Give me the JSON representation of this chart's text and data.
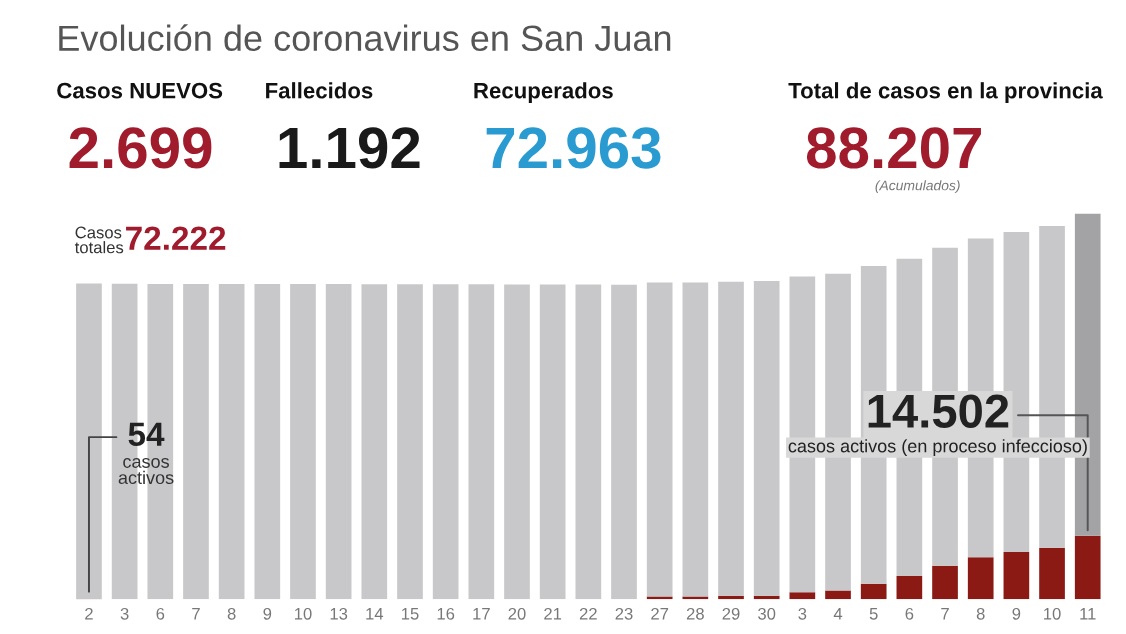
{
  "chart_data": {
    "type": "bar",
    "stacked": true,
    "title": "Evolución de coronavirus en San Juan",
    "categories": [
      "2",
      "3",
      "6",
      "7",
      "8",
      "9",
      "10",
      "13",
      "14",
      "15",
      "16",
      "17",
      "20",
      "21",
      "22",
      "23",
      "27",
      "28",
      "29",
      "30",
      "3",
      "4",
      "5",
      "6",
      "7",
      "8",
      "9",
      "10",
      "11"
    ],
    "series": [
      {
        "color": "#8b1a14",
        "values": [
          54,
          null,
          null,
          null,
          null,
          null,
          null,
          null,
          null,
          null,
          null,
          null,
          null,
          null,
          null,
          null,
          590,
          590,
          780,
          780,
          1570,
          1960,
          3530,
          5290,
          7640,
          9600,
          10780,
          11760,
          14502
        ],
        "value_labels": [
          "54",
          null,
          null,
          null,
          null,
          null,
          null,
          null,
          null,
          null,
          null,
          null,
          null,
          null,
          null,
          null,
          null,
          null,
          null,
          null,
          null,
          null,
          null,
          null,
          null,
          null,
          null,
          null,
          "14.502"
        ]
      },
      {
        "colors": [
          "#c8c8ca",
          "#c8c8ca",
          "#c8c8ca",
          "#c8c8ca",
          "#c8c8ca",
          "#c8c8ca",
          "#c8c8ca",
          "#c8c8ca",
          "#c8c8ca",
          "#c8c8ca",
          "#c8c8ca",
          "#c8c8ca",
          "#c8c8ca",
          "#c8c8ca",
          "#c8c8ca",
          "#c8c8ca",
          "#c8c8ca",
          "#c8c8ca",
          "#c8c8ca",
          "#c8c8ca",
          "#c8c8ca",
          "#c8c8ca",
          "#c8c8ca",
          "#c8c8ca",
          "#c8c8ca",
          "#c8c8ca",
          "#c8c8ca",
          "#c8c8ca",
          "#a3a3a5"
        ],
        "values": [
          72168,
          72162,
          72152,
          72142,
          72132,
          72122,
          72112,
          72102,
          72092,
          72082,
          72072,
          72062,
          72042,
          72022,
          72002,
          71972,
          71910,
          71910,
          71880,
          72020,
          72280,
          72490,
          72720,
          72610,
          72800,
          72940,
          73260,
          73630,
          73705
        ]
      }
    ],
    "totals": [
      "72.222",
      null,
      null,
      null,
      null,
      null,
      null,
      null,
      null,
      null,
      null,
      null,
      null,
      null,
      null,
      null,
      null,
      null,
      null,
      null,
      null,
      null,
      null,
      null,
      null,
      null,
      null,
      null,
      null
    ],
    "annotations": [
      "Casos NUEVOS",
      "2.699",
      "Fallecidos",
      "1.192",
      "Recuperados",
      "72.963",
      "Total de casos en la provincia",
      "88.207",
      "(Acumulados)",
      "Casos totales",
      "casos activos",
      "casos activos (en proceso infeccioso)"
    ],
    "tick_labels": "x",
    "grid": false,
    "legend": false
  }
}
